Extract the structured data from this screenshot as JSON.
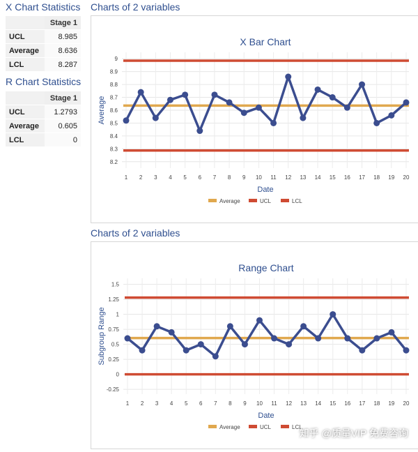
{
  "xstats": {
    "title": "X Chart Statistics",
    "stage": "Stage 1",
    "rows": [
      {
        "label": "UCL",
        "value": "8.985"
      },
      {
        "label": "Average",
        "value": "8.636"
      },
      {
        "label": "LCL",
        "value": "8.287"
      }
    ]
  },
  "rstats": {
    "title": "R Chart Statistics",
    "stage": "Stage 1",
    "rows": [
      {
        "label": "UCL",
        "value": "1.2793"
      },
      {
        "label": "Average",
        "value": "0.605"
      },
      {
        "label": "LCL",
        "value": "0"
      }
    ]
  },
  "charts_header": "Charts of 2 variables",
  "watermark": "知乎 @质量VIP 免费咨询",
  "colors": {
    "series": "#3b4d8f",
    "average": "#e0a84e",
    "limits": "#cf4b33",
    "title": "#2f4f8f"
  },
  "chart_data": [
    {
      "type": "line",
      "title": "X Bar Chart",
      "xlabel": "Date",
      "ylabel": "Average",
      "ylim": [
        8.15,
        9.05
      ],
      "yticks": [
        "8.2",
        "8.3",
        "8.4",
        "8.5",
        "8.6",
        "8.7",
        "8.8",
        "8.9",
        "9"
      ],
      "x": [
        "1",
        "2",
        "3",
        "4",
        "5",
        "6",
        "7",
        "8",
        "9",
        "10",
        "11",
        "12",
        "13",
        "14",
        "15",
        "16",
        "17",
        "18",
        "19",
        "20"
      ],
      "series": [
        {
          "name": "Average",
          "values": [
            8.52,
            8.74,
            8.54,
            8.68,
            8.72,
            8.44,
            8.72,
            8.66,
            8.58,
            8.62,
            8.5,
            8.86,
            8.54,
            8.76,
            8.7,
            8.62,
            8.8,
            8.5,
            8.56,
            8.66
          ]
        }
      ],
      "lines": {
        "Average": 8.636,
        "UCL": 8.985,
        "LCL": 8.287
      },
      "legend": [
        "Average",
        "UCL",
        "LCL"
      ],
      "legend_position": "bottom"
    },
    {
      "type": "line",
      "title": "Range Chart",
      "xlabel": "Date",
      "ylabel": "Subgroup Range",
      "ylim": [
        -0.33,
        1.6
      ],
      "yticks": [
        "-0.25",
        "0",
        "0.25",
        "0.5",
        "0.75",
        "1",
        "1.25",
        "1.5"
      ],
      "x": [
        "1",
        "2",
        "3",
        "4",
        "5",
        "6",
        "7",
        "8",
        "9",
        "10",
        "11",
        "12",
        "13",
        "14",
        "15",
        "16",
        "17",
        "18",
        "19",
        "20"
      ],
      "series": [
        {
          "name": "Range",
          "values": [
            0.6,
            0.4,
            0.8,
            0.7,
            0.4,
            0.5,
            0.3,
            0.8,
            0.5,
            0.9,
            0.6,
            0.5,
            0.8,
            0.6,
            1.0,
            0.6,
            0.4,
            0.6,
            0.7,
            0.4
          ]
        }
      ],
      "lines": {
        "Average": 0.605,
        "UCL": 1.2793,
        "LCL": 0
      },
      "legend": [
        "Average",
        "UCL",
        "LCL"
      ],
      "legend_position": "bottom"
    }
  ]
}
